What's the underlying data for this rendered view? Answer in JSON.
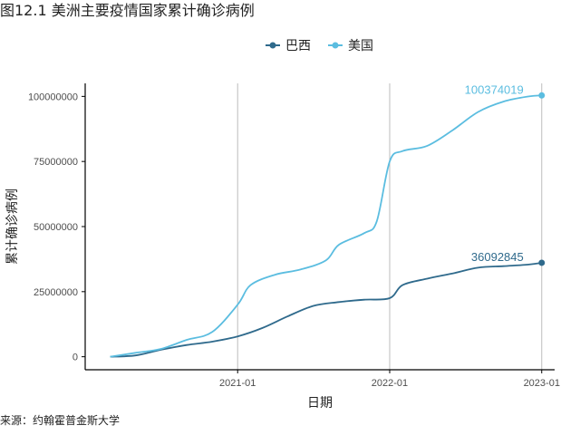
{
  "title": "图12.1 美洲主要疫情国家累计确诊病例",
  "source": "来源：约翰霍普金斯大学",
  "chart_data": {
    "type": "line",
    "xlabel": "日期",
    "ylabel": "累计确诊病例",
    "x_ticks": [
      "2021-01",
      "2022-01",
      "2023-01"
    ],
    "y_ticks": [
      0,
      25000000,
      50000000,
      75000000,
      100000000
    ],
    "y_tick_labels": [
      "0",
      "25000000",
      "50000000",
      "75000000",
      "100000000"
    ],
    "ylim": [
      -5000000,
      105000000
    ],
    "xlim": [
      "2020-01-01",
      "2023-02-01"
    ],
    "grid": "vertical lines at x ticks",
    "legend_position": "top",
    "colors": {
      "巴西": "#2f6a8c",
      "美国": "#5bbde0"
    },
    "series": [
      {
        "name": "巴西",
        "color": "#2f6a8c",
        "points": [
          [
            "2020-03-01",
            0
          ],
          [
            "2020-05-01",
            500000
          ],
          [
            "2020-07-01",
            2700000
          ],
          [
            "2020-09-01",
            4500000
          ],
          [
            "2020-11-01",
            5800000
          ],
          [
            "2021-01-01",
            7800000
          ],
          [
            "2021-03-01",
            11000000
          ],
          [
            "2021-05-01",
            15500000
          ],
          [
            "2021-07-01",
            19500000
          ],
          [
            "2021-09-01",
            21000000
          ],
          [
            "2021-11-01",
            21900000
          ],
          [
            "2022-01-01",
            22500000
          ],
          [
            "2022-02-01",
            27500000
          ],
          [
            "2022-04-01",
            30000000
          ],
          [
            "2022-06-01",
            32000000
          ],
          [
            "2022-08-01",
            34200000
          ],
          [
            "2022-10-01",
            34800000
          ],
          [
            "2022-12-01",
            35400000
          ],
          [
            "2023-01-01",
            36092845
          ]
        ],
        "end_label": "36092845"
      },
      {
        "name": "美国",
        "color": "#5bbde0",
        "points": [
          [
            "2020-03-01",
            0
          ],
          [
            "2020-05-01",
            1500000
          ],
          [
            "2020-07-01",
            3000000
          ],
          [
            "2020-09-01",
            6500000
          ],
          [
            "2020-11-01",
            9500000
          ],
          [
            "2021-01-01",
            20000000
          ],
          [
            "2021-02-01",
            27500000
          ],
          [
            "2021-04-01",
            31500000
          ],
          [
            "2021-06-01",
            33500000
          ],
          [
            "2021-08-01",
            37000000
          ],
          [
            "2021-09-01",
            43000000
          ],
          [
            "2021-11-01",
            47500000
          ],
          [
            "2021-12-01",
            52000000
          ],
          [
            "2022-01-01",
            75000000
          ],
          [
            "2022-02-01",
            79000000
          ],
          [
            "2022-04-01",
            81000000
          ],
          [
            "2022-06-01",
            87000000
          ],
          [
            "2022-08-01",
            94000000
          ],
          [
            "2022-10-01",
            98000000
          ],
          [
            "2022-12-01",
            100000000
          ],
          [
            "2023-01-01",
            100374019
          ]
        ],
        "end_label": "100374019"
      }
    ]
  }
}
